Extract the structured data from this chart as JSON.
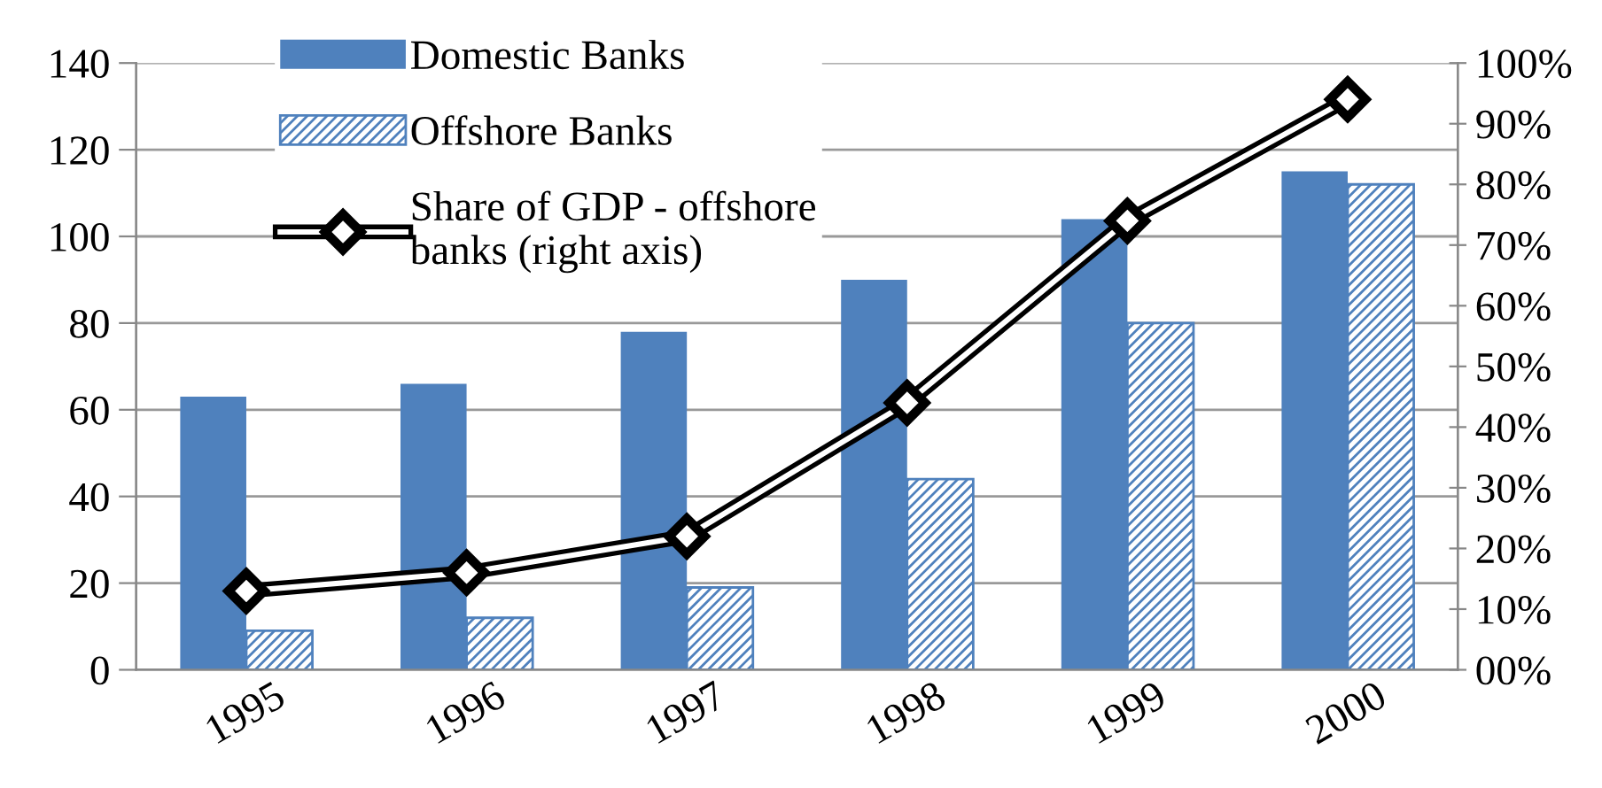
{
  "chart_data": {
    "type": "bar",
    "categories": [
      "1995",
      "1996",
      "1997",
      "1998",
      "1999",
      "2000"
    ],
    "series": [
      {
        "name": "Domestic Banks",
        "color": "#4f81bd",
        "values": [
          63,
          66,
          78,
          90,
          104,
          115
        ]
      },
      {
        "name": "Offshore Banks",
        "color": "#4f81bd",
        "values": [
          9,
          12,
          19,
          44,
          80,
          112
        ]
      },
      {
        "name": "Share of GDP - offshore banks (right axis)",
        "type": "line",
        "axis": "y2",
        "color": "#000000",
        "marker": "diamond",
        "values": [
          13,
          16,
          22,
          44,
          74,
          94
        ]
      }
    ],
    "ylim": [
      0,
      140
    ],
    "yticks": [
      0,
      20,
      40,
      60,
      80,
      100,
      120,
      140
    ],
    "y2lim": [
      0,
      100
    ],
    "y2ticks": [
      {
        "value": 0,
        "label": "00%"
      },
      {
        "value": 10,
        "label": "10%"
      },
      {
        "value": 20,
        "label": "20%"
      },
      {
        "value": 30,
        "label": "30%"
      },
      {
        "value": 40,
        "label": "40%"
      },
      {
        "value": 50,
        "label": "50%"
      },
      {
        "value": 60,
        "label": "60%"
      },
      {
        "value": 70,
        "label": "70%"
      },
      {
        "value": 80,
        "label": "80%"
      },
      {
        "value": 90,
        "label": "90%"
      },
      {
        "value": 100,
        "label": "100%"
      }
    ],
    "grid": "y",
    "legend": "top left"
  }
}
